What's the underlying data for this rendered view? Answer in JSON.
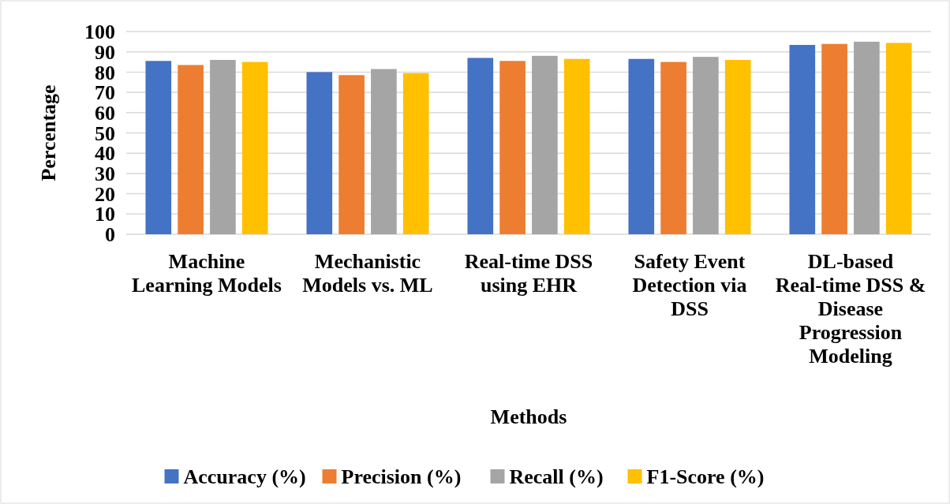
{
  "chart_data": {
    "type": "bar",
    "xlabel": "Methods",
    "ylabel": "Percentage",
    "categories": [
      "Machine Learning Models",
      "Mechanistic Models vs. ML",
      "Real-time DSS using EHR",
      "Safety Event Detection via DSS",
      "DL-based Real-time DSS & Disease Progression Modeling"
    ],
    "series": [
      {
        "name": "Accuracy (%)",
        "color": "#4472c4",
        "values": [
          85.5,
          80,
          87,
          86.5,
          93.4
        ]
      },
      {
        "name": "Precision (%)",
        "color": "#ed7d31",
        "values": [
          83.5,
          78.5,
          85.5,
          85,
          93.9
        ]
      },
      {
        "name": "Recall (%)",
        "color": "#a5a5a5",
        "values": [
          86,
          81.5,
          88,
          87.5,
          95
        ]
      },
      {
        "name": "F1-Score (%)",
        "color": "#ffc000",
        "values": [
          85,
          79.5,
          86.5,
          86,
          94.4
        ]
      }
    ],
    "ylim": [
      0,
      100
    ],
    "yticks": [
      0,
      10,
      20,
      30,
      40,
      50,
      60,
      70,
      80,
      90,
      100
    ],
    "grid": "y",
    "legend": "bottom"
  }
}
